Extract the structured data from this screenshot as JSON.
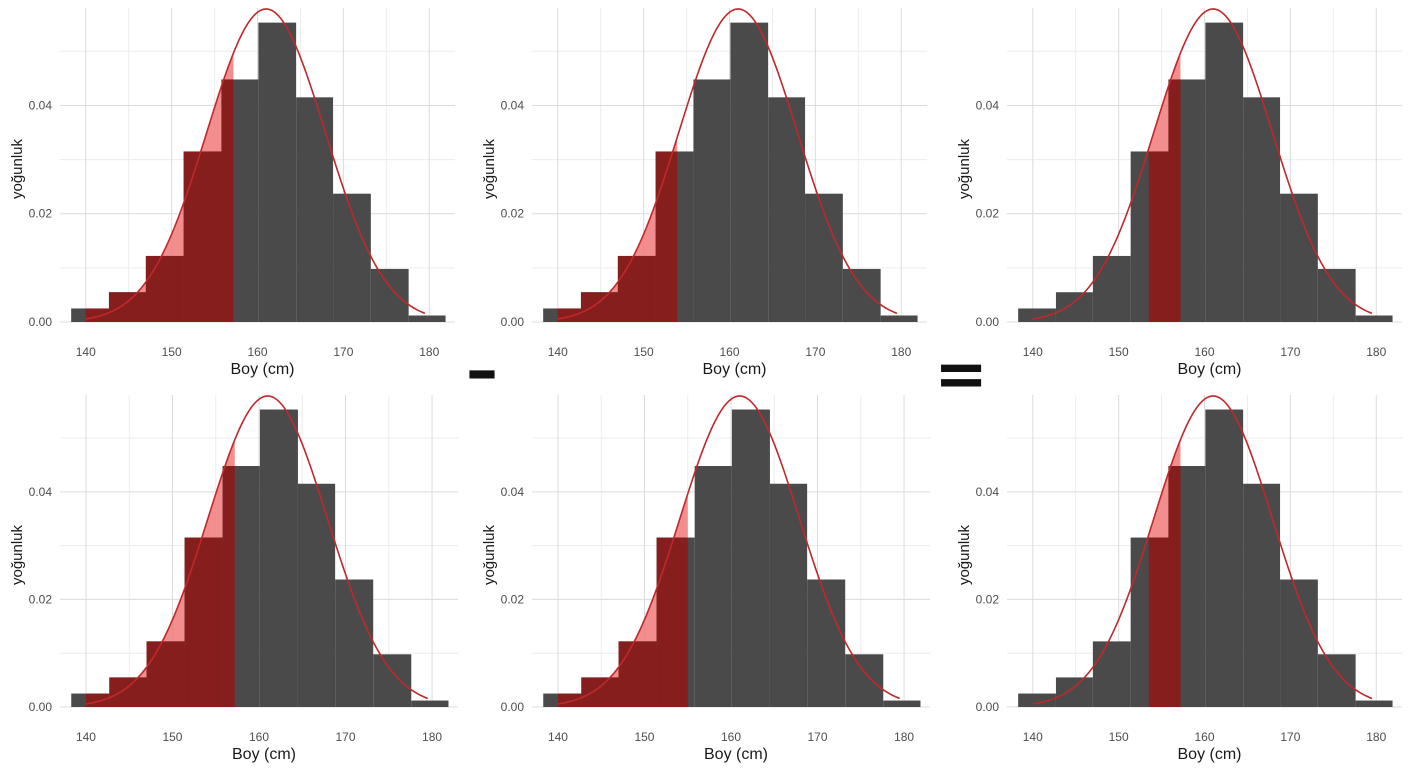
{
  "chart_data": [
    {
      "id": "p1",
      "type": "histogram",
      "xlabel": "Boy (cm)",
      "ylabel": "yoğunluk",
      "xlim": [
        137,
        183
      ],
      "ylim": [
        0,
        0.058
      ],
      "x_ticks": [
        140,
        150,
        160,
        170,
        180
      ],
      "y_ticks": [
        0,
        0.02,
        0.04
      ],
      "y_tick_labels": [
        "0.00",
        "0.02",
        "0.04"
      ],
      "bin_edges": [
        138.3,
        142.7,
        147.0,
        151.4,
        155.8,
        160.1,
        164.5,
        168.8,
        173.2,
        177.6,
        181.9
      ],
      "densities": [
        0.0025,
        0.0055,
        0.0122,
        0.0315,
        0.0448,
        0.0553,
        0.0415,
        0.0237,
        0.0098,
        0.0012
      ],
      "normal_curve": {
        "mean": 161,
        "sd": 6.9,
        "from": 140,
        "to": 179.5
      },
      "shaded": {
        "from": 140,
        "to": 157.2
      }
    },
    {
      "id": "p2",
      "type": "histogram",
      "xlabel": "Boy (cm)",
      "ylabel": "yoğunluk",
      "xlim": [
        137,
        183
      ],
      "ylim": [
        0,
        0.058
      ],
      "x_ticks": [
        140,
        150,
        160,
        170,
        180
      ],
      "y_ticks": [
        0,
        0.02,
        0.04
      ],
      "y_tick_labels": [
        "0.00",
        "0.02",
        "0.04"
      ],
      "bin_edges": [
        138.3,
        142.7,
        147.0,
        151.4,
        155.8,
        160.1,
        164.5,
        168.8,
        173.2,
        177.6,
        181.9
      ],
      "densities": [
        0.0025,
        0.0055,
        0.0122,
        0.0315,
        0.0448,
        0.0553,
        0.0415,
        0.0237,
        0.0098,
        0.0012
      ],
      "normal_curve": {
        "mean": 161,
        "sd": 6.9,
        "from": 140,
        "to": 179.5
      },
      "shaded": {
        "from": 140,
        "to": 153.9
      }
    },
    {
      "id": "p3",
      "type": "histogram",
      "xlabel": "Boy (cm)",
      "ylabel": "yoğunluk",
      "xlim": [
        137,
        183
      ],
      "ylim": [
        0,
        0.058
      ],
      "x_ticks": [
        140,
        150,
        160,
        170,
        180
      ],
      "y_ticks": [
        0,
        0.02,
        0.04
      ],
      "y_tick_labels": [
        "0.00",
        "0.02",
        "0.04"
      ],
      "bin_edges": [
        138.3,
        142.7,
        147.0,
        151.4,
        155.8,
        160.1,
        164.5,
        168.8,
        173.2,
        177.6,
        181.9
      ],
      "densities": [
        0.0025,
        0.0055,
        0.0122,
        0.0315,
        0.0448,
        0.0553,
        0.0415,
        0.0237,
        0.0098,
        0.0012
      ],
      "normal_curve": {
        "mean": 161,
        "sd": 6.9,
        "from": 140,
        "to": 179.5
      },
      "shaded": {
        "from": 153.5,
        "to": 157.2
      }
    },
    {
      "id": "p4",
      "type": "histogram",
      "xlabel": "Boy (cm)",
      "ylabel": "yoğunluk",
      "xlim": [
        137,
        183
      ],
      "ylim": [
        0,
        0.058
      ],
      "x_ticks": [
        140,
        150,
        160,
        170,
        180
      ],
      "y_ticks": [
        0,
        0.02,
        0.04
      ],
      "y_tick_labels": [
        "0.00",
        "0.02",
        "0.04"
      ],
      "bin_edges": [
        138.3,
        142.7,
        147.0,
        151.4,
        155.8,
        160.1,
        164.5,
        168.8,
        173.2,
        177.6,
        181.9
      ],
      "densities": [
        0.0025,
        0.0055,
        0.0122,
        0.0315,
        0.0448,
        0.0553,
        0.0415,
        0.0237,
        0.0098,
        0.0012
      ],
      "normal_curve": {
        "mean": 161,
        "sd": 6.9,
        "from": 140,
        "to": 179.5
      },
      "shaded": {
        "from": 140,
        "to": 157.2
      }
    },
    {
      "id": "p5",
      "type": "histogram",
      "xlabel": "Boy (cm)",
      "ylabel": "yoğunluk",
      "xlim": [
        137,
        183
      ],
      "ylim": [
        0,
        0.058
      ],
      "x_ticks": [
        140,
        150,
        160,
        170,
        180
      ],
      "y_ticks": [
        0,
        0.02,
        0.04
      ],
      "y_tick_labels": [
        "0.00",
        "0.02",
        "0.04"
      ],
      "bin_edges": [
        138.3,
        142.7,
        147.0,
        151.4,
        155.8,
        160.1,
        164.5,
        168.8,
        173.2,
        177.6,
        181.9
      ],
      "densities": [
        0.0025,
        0.0055,
        0.0122,
        0.0315,
        0.0448,
        0.0553,
        0.0415,
        0.0237,
        0.0098,
        0.0012
      ],
      "normal_curve": {
        "mean": 161,
        "sd": 6.9,
        "from": 140,
        "to": 179.5
      },
      "shaded": {
        "from": 140,
        "to": 155.0
      }
    },
    {
      "id": "p6",
      "type": "histogram",
      "xlabel": "Boy (cm)",
      "ylabel": "yoğunluk",
      "xlim": [
        137,
        183
      ],
      "ylim": [
        0,
        0.058
      ],
      "x_ticks": [
        140,
        150,
        160,
        170,
        180
      ],
      "y_ticks": [
        0,
        0.02,
        0.04
      ],
      "y_tick_labels": [
        "0.00",
        "0.02",
        "0.04"
      ],
      "bin_edges": [
        138.3,
        142.7,
        147.0,
        151.4,
        155.8,
        160.1,
        164.5,
        168.8,
        173.2,
        177.6,
        181.9
      ],
      "densities": [
        0.0025,
        0.0055,
        0.0122,
        0.0315,
        0.0448,
        0.0553,
        0.0415,
        0.0237,
        0.0098,
        0.0012
      ],
      "normal_curve": {
        "mean": 161,
        "sd": 6.9,
        "from": 140,
        "to": 179.5
      },
      "shaded": {
        "from": 153.5,
        "to": 157.2
      }
    }
  ],
  "operators": {
    "minus": "–",
    "equals": "="
  },
  "colors": {
    "bar": "#4a4a4a",
    "band": "#8b1a1a",
    "curve": "#c0282a",
    "curve_fill": "#f07a7a"
  }
}
